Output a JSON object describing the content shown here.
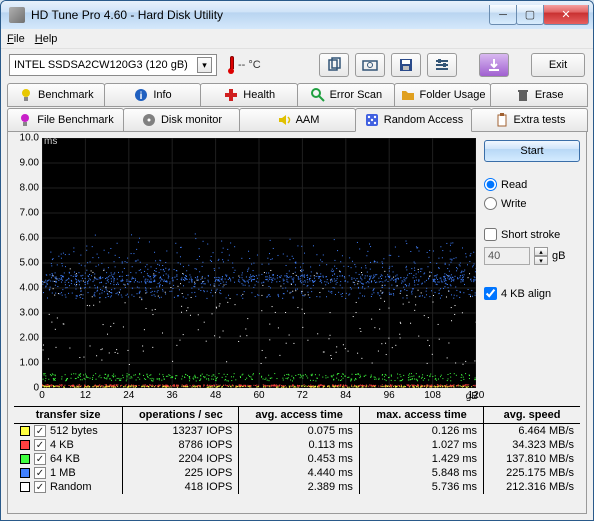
{
  "window": {
    "title": "HD Tune Pro 4.60 - Hard Disk Utility"
  },
  "menu": {
    "file": "File",
    "help": "Help"
  },
  "toolbar": {
    "drive": "INTEL SSDSA2CW120G3    (120 gB)",
    "temp": "-- °C",
    "exit": "Exit"
  },
  "tabs_top": [
    {
      "label": "Benchmark",
      "icon": "bulb",
      "color": "#e8c800"
    },
    {
      "label": "Info",
      "icon": "info",
      "color": "#2060c0"
    },
    {
      "label": "Health",
      "icon": "plus",
      "color": "#d02020"
    },
    {
      "label": "Error Scan",
      "icon": "search",
      "color": "#20a040"
    },
    {
      "label": "Folder Usage",
      "icon": "folder",
      "color": "#e0a020"
    },
    {
      "label": "Erase",
      "icon": "trash",
      "color": "#606060"
    }
  ],
  "tabs_bot": [
    {
      "label": "File Benchmark",
      "icon": "bulb2",
      "color": "#c820c8"
    },
    {
      "label": "Disk monitor",
      "icon": "disk",
      "color": "#808080"
    },
    {
      "label": "AAM",
      "icon": "speaker",
      "color": "#e0c000"
    },
    {
      "label": "Random Access",
      "icon": "dice",
      "color": "#4060e0",
      "active": true
    },
    {
      "label": "Extra tests",
      "icon": "clip",
      "color": "#a06030"
    }
  ],
  "chart": {
    "y_unit": "ms",
    "x_unit": "gB",
    "ylabels": [
      "10.0",
      "9.00",
      "8.00",
      "7.00",
      "6.00",
      "5.00",
      "4.00",
      "3.00",
      "2.00",
      "1.00",
      "0"
    ],
    "xlabels": [
      "0",
      "12",
      "24",
      "36",
      "48",
      "60",
      "72",
      "84",
      "96",
      "108",
      "120"
    ],
    "grid_color": "#202020",
    "band_colors": [
      "#ffff40",
      "#ff4040",
      "#40ff40",
      "#4080ff",
      "#ffffff"
    ],
    "bands_y_ms": [
      0.08,
      0.12,
      0.45,
      4.4
    ],
    "scatter_blue_band": [
      3.6,
      6.2
    ],
    "scatter_white_center": 2.4
  },
  "controls": {
    "start": "Start",
    "read": "Read",
    "write": "Write",
    "read_selected": true,
    "short_stroke": "Short stroke",
    "short_stroke_checked": false,
    "stroke_value": "40",
    "stroke_unit": "gB",
    "align": "4 KB align",
    "align_checked": true
  },
  "results": {
    "headers": [
      "transfer size",
      "operations / sec",
      "avg. access time",
      "max. access time",
      "avg. speed"
    ],
    "rows": [
      {
        "color": "#ffff40",
        "label": "512 bytes",
        "ops": "13237 IOPS",
        "avg": "0.075 ms",
        "max": "0.126 ms",
        "speed": "6.464 MB/s",
        "checked": true
      },
      {
        "color": "#ff4040",
        "label": "4 KB",
        "ops": "8786 IOPS",
        "avg": "0.113 ms",
        "max": "1.027 ms",
        "speed": "34.323 MB/s",
        "checked": true
      },
      {
        "color": "#40ff40",
        "label": "64 KB",
        "ops": "2204 IOPS",
        "avg": "0.453 ms",
        "max": "1.429 ms",
        "speed": "137.810 MB/s",
        "checked": true
      },
      {
        "color": "#4080ff",
        "label": "1 MB",
        "ops": "225 IOPS",
        "avg": "4.440 ms",
        "max": "5.848 ms",
        "speed": "225.175 MB/s",
        "checked": true
      },
      {
        "color": "#ffffff",
        "label": "Random",
        "ops": "418 IOPS",
        "avg": "2.389 ms",
        "max": "5.736 ms",
        "speed": "212.316 MB/s",
        "checked": true
      }
    ]
  }
}
